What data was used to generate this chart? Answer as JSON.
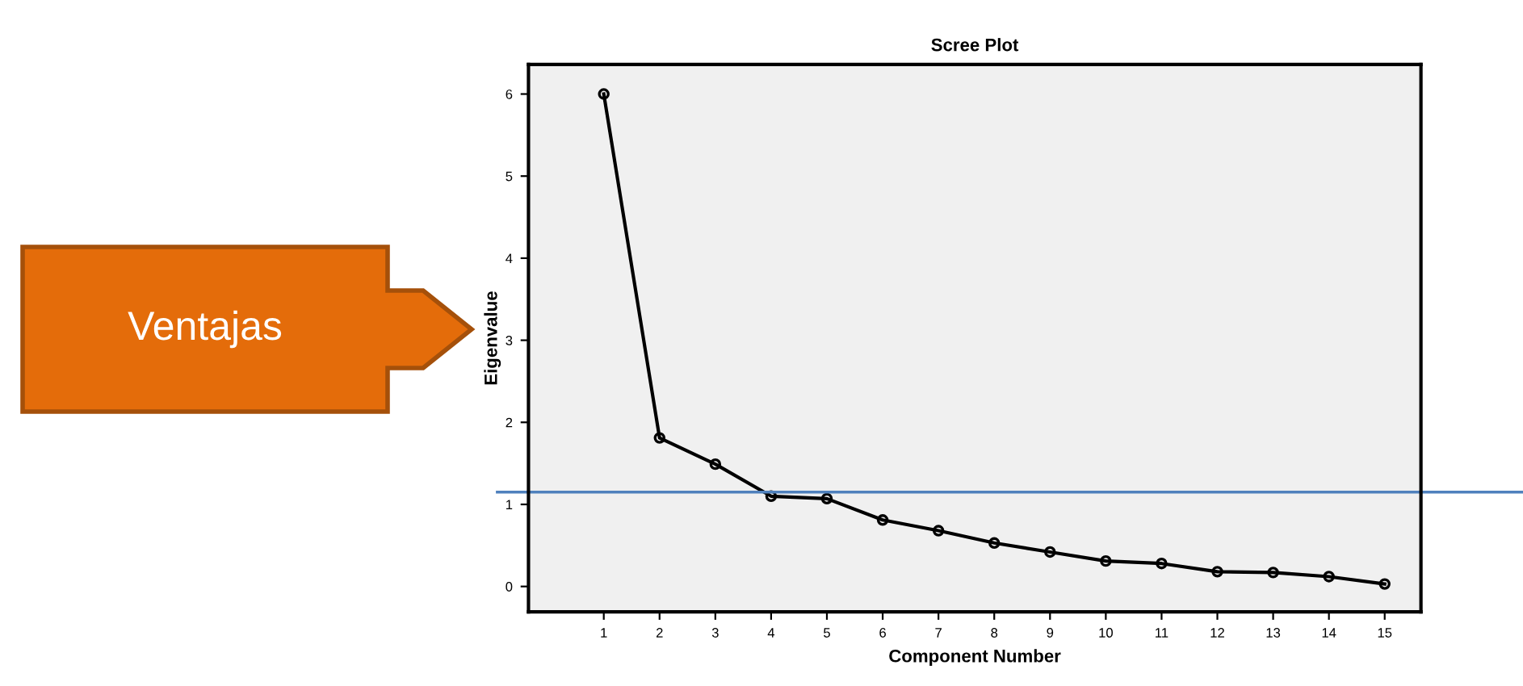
{
  "chart_data": {
    "type": "line",
    "title": "Scree Plot",
    "xlabel": "Component Number",
    "ylabel": "Eigenvalue",
    "categories": [
      "1",
      "2",
      "3",
      "4",
      "5",
      "6",
      "7",
      "8",
      "9",
      "10",
      "11",
      "12",
      "13",
      "14",
      "15"
    ],
    "series": [
      {
        "color": "#000000",
        "values": [
          6.0,
          1.81,
          1.49,
          1.1,
          1.07,
          0.81,
          0.68,
          0.53,
          0.42,
          0.31,
          0.28,
          0.18,
          0.17,
          0.12,
          0.03
        ]
      }
    ],
    "ylim": [
      -0.31,
      6.36
    ],
    "yticks": [
      0,
      1,
      2,
      3,
      4,
      5,
      6
    ],
    "ref_lines": [
      {
        "axis": "y",
        "value": 1.15,
        "color": "#4f81bd"
      }
    ],
    "annotations": [
      "Ventajas"
    ],
    "marker": "circle",
    "line_style": "solid",
    "grid": false,
    "legend": false
  }
}
